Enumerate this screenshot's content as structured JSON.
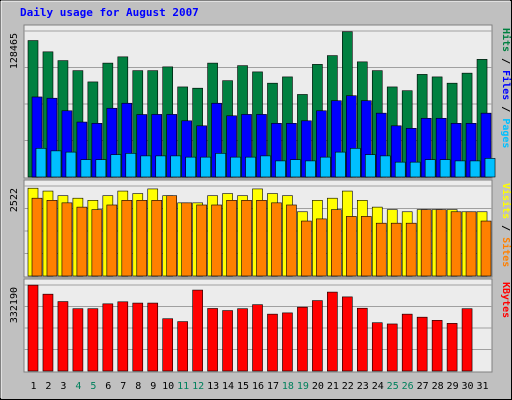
{
  "chart_data": {
    "type": "bar",
    "title": "Daily usage for August 2007",
    "categories": [
      "1",
      "2",
      "3",
      "4",
      "5",
      "6",
      "7",
      "8",
      "9",
      "10",
      "11",
      "12",
      "13",
      "14",
      "15",
      "16",
      "17",
      "18",
      "19",
      "20",
      "21",
      "22",
      "23",
      "24",
      "25",
      "26",
      "27",
      "28",
      "29",
      "30",
      "31"
    ],
    "weekend_days": [
      "4",
      "5",
      "11",
      "12",
      "18",
      "19",
      "25",
      "26"
    ],
    "colors": {
      "background": "#c0c0c0",
      "panel": "#ececec",
      "title": "#0000ff",
      "hits": "#008040",
      "files": "#0000ff",
      "pages": "#00c0ff",
      "visits": "#ffff00",
      "sites": "#ff8000",
      "kbytes": "#ff0000",
      "weekend_label": "#00805c",
      "weekday_label": "#000000"
    },
    "panels": [
      {
        "ymax_label": "128465",
        "ymax": 128465,
        "right_label": [
          "Pages",
          "Files",
          "Hits"
        ],
        "series": [
          {
            "name": "Hits",
            "color": "#008040",
            "values": [
              120070,
              110140,
              102420,
              93590,
              83660,
              100210,
              105730,
              93590,
              93590,
              96900,
              79250,
              78140,
              100210,
              84760,
              98000,
              92480,
              82550,
              88070,
              72630,
              99100,
              106830,
              127810,
              101310,
              93590,
              79250,
              75930,
              90280,
              88070,
              82550,
              91380,
              103520
            ]
          },
          {
            "name": "Files",
            "color": "#0000ff",
            "values": [
              70420,
              69320,
              58280,
              48350,
              47240,
              60490,
              64900,
              54970,
              55070,
              55070,
              49450,
              45040,
              64900,
              53860,
              55070,
              55070,
              47240,
              47240,
              49450,
              58280,
              67110,
              71520,
              67110,
              56170,
              45040,
              42840,
              51660,
              51660,
              47240,
              47240,
              56170
            ]
          },
          {
            "name": "Pages",
            "color": "#00c0ff",
            "values": [
              25200,
              22990,
              21890,
              15260,
              15260,
              19680,
              20780,
              18570,
              18570,
              18570,
              17470,
              17470,
              20780,
              17470,
              17470,
              18570,
              14160,
              15260,
              14160,
              17470,
              21890,
              25200,
              19680,
              18570,
              13060,
              13060,
              15260,
              15260,
              14160,
              14160,
              16360
            ]
          }
        ]
      },
      {
        "ymax_label": "2522",
        "ymax": 2522,
        "right_label": [
          "Sites",
          "Visits"
        ],
        "series": [
          {
            "name": "Visits",
            "color": "#ffff00",
            "values": [
              2460,
              2380,
              2250,
              2180,
              2120,
              2250,
              2380,
              2310,
              2440,
              2250,
              2050,
              2050,
              2250,
              2310,
              2250,
              2440,
              2310,
              2250,
              1800,
              2120,
              2180,
              2380,
              2120,
              1930,
              1860,
              1800,
              1860,
              1860,
              1860,
              1800,
              1800
            ]
          },
          {
            "name": "Sites",
            "color": "#ff8000",
            "values": [
              2180,
              2120,
              2050,
              1930,
              1860,
              1990,
              2120,
              2120,
              2120,
              2250,
              2050,
              1990,
              1990,
              2120,
              2120,
              2120,
              2050,
              1990,
              1540,
              1600,
              1860,
              1670,
              1670,
              1480,
              1480,
              1480,
              1860,
              1860,
              1800,
              1800,
              1540
            ]
          }
        ]
      },
      {
        "ymax_label": "332190",
        "ymax": 332190,
        "right_label": [
          "KBytes"
        ],
        "series": [
          {
            "name": "KBytes",
            "color": "#ff0000",
            "values": [
              331710,
              296800,
              268210,
              240650,
              240650,
              259450,
              267330,
              262370,
              262370,
              201920,
              190810,
              312600,
              241530,
              233470,
              240650,
              256180,
              219630,
              224450,
              246480,
              271960,
              304790,
              286250,
              242490,
              186530,
              181680,
              219630,
              207920,
              195730,
              184070,
              240650,
              0
            ]
          }
        ]
      }
    ]
  }
}
